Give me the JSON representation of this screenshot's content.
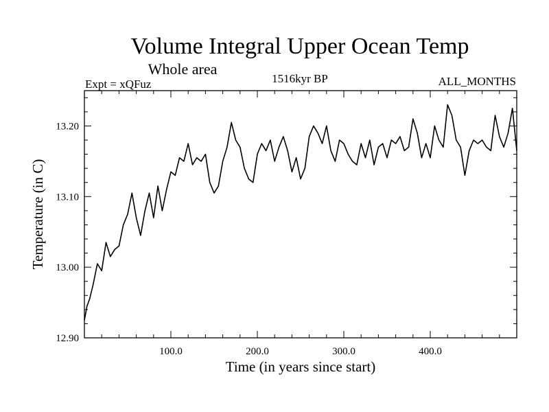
{
  "chart_data": {
    "type": "line",
    "title": "Volume Integral Upper Ocean Temp",
    "subtitle": "Whole area",
    "info_left": "Expt = xQFuz",
    "info_center": "1516kyr BP",
    "info_right": "ALL_MONTHS",
    "xlabel": "Time (in years since start)",
    "ylabel": "Temperature (in C)",
    "xlim": [
      0,
      500
    ],
    "ylim": [
      12.9,
      13.25
    ],
    "x_ticks": [
      {
        "value": 100,
        "label": "100.0"
      },
      {
        "value": 200,
        "label": "200.0"
      },
      {
        "value": 300,
        "label": "300.0"
      },
      {
        "value": 400,
        "label": "400.0"
      }
    ],
    "y_ticks": [
      {
        "value": 12.9,
        "label": "12.90"
      },
      {
        "value": 13.0,
        "label": "13.00"
      },
      {
        "value": 13.1,
        "label": "13.10"
      },
      {
        "value": 13.2,
        "label": "13.20"
      }
    ],
    "series": [
      {
        "name": "Volume integral upper ocean temperature",
        "x": [
          0,
          3,
          6,
          10,
          15,
          20,
          25,
          30,
          35,
          40,
          45,
          50,
          55,
          60,
          65,
          70,
          75,
          80,
          85,
          90,
          95,
          100,
          105,
          110,
          115,
          120,
          125,
          130,
          135,
          140,
          145,
          150,
          155,
          160,
          165,
          170,
          175,
          180,
          185,
          190,
          195,
          200,
          205,
          210,
          215,
          220,
          225,
          230,
          235,
          240,
          245,
          250,
          255,
          260,
          265,
          270,
          275,
          280,
          285,
          290,
          295,
          300,
          305,
          310,
          315,
          320,
          325,
          330,
          335,
          340,
          345,
          350,
          355,
          360,
          365,
          370,
          375,
          380,
          385,
          390,
          395,
          400,
          405,
          410,
          415,
          420,
          425,
          430,
          435,
          440,
          445,
          450,
          455,
          460,
          465,
          470,
          475,
          480,
          485,
          490,
          495,
          500
        ],
        "values": [
          12.925,
          12.945,
          12.955,
          12.975,
          13.005,
          12.995,
          13.035,
          13.015,
          13.025,
          13.03,
          13.06,
          13.075,
          13.105,
          13.07,
          13.045,
          13.08,
          13.105,
          13.07,
          13.115,
          13.08,
          13.11,
          13.135,
          13.13,
          13.155,
          13.15,
          13.175,
          13.145,
          13.155,
          13.15,
          13.16,
          13.12,
          13.105,
          13.115,
          13.15,
          13.17,
          13.205,
          13.18,
          13.17,
          13.14,
          13.125,
          13.12,
          13.16,
          13.175,
          13.165,
          13.18,
          13.15,
          13.17,
          13.185,
          13.165,
          13.135,
          13.155,
          13.125,
          13.14,
          13.185,
          13.2,
          13.19,
          13.175,
          13.2,
          13.165,
          13.15,
          13.18,
          13.175,
          13.16,
          13.15,
          13.145,
          13.175,
          13.155,
          13.18,
          13.145,
          13.17,
          13.175,
          13.155,
          13.18,
          13.175,
          13.185,
          13.165,
          13.17,
          13.21,
          13.19,
          13.155,
          13.175,
          13.155,
          13.2,
          13.18,
          13.17,
          13.23,
          13.215,
          13.18,
          13.17,
          13.13,
          13.165,
          13.18,
          13.175,
          13.18,
          13.17,
          13.165,
          13.215,
          13.185,
          13.17,
          13.19,
          13.225,
          13.165
        ]
      }
    ]
  }
}
